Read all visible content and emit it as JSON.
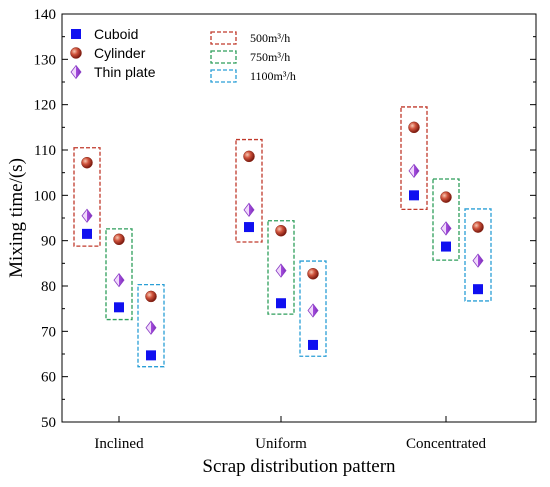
{
  "chart_data": {
    "type": "scatter",
    "xlabel": "Scrap distribution pattern",
    "ylabel": "Mixing time/(s)",
    "categories": [
      "Inclined",
      "Uniform",
      "Concentrated"
    ],
    "ylim": [
      50,
      140
    ],
    "yticks": [
      50,
      60,
      70,
      80,
      90,
      100,
      110,
      120,
      130,
      140
    ],
    "grid": false,
    "legend_position": "top-left",
    "shapes": [
      {
        "name": "Cuboid",
        "marker": "square",
        "color": "#1010f0"
      },
      {
        "name": "Cylinder",
        "marker": "sphere",
        "color": "#c0392b"
      },
      {
        "name": "Thin plate",
        "marker": "diamond",
        "color": "#a64de0"
      }
    ],
    "flow_rates": [
      {
        "name": "500m³/h",
        "color": "#c0392b"
      },
      {
        "name": "750m³/h",
        "color": "#2e9e5b"
      },
      {
        "name": "1100m³/h",
        "color": "#2a9fd6"
      }
    ],
    "groups": [
      {
        "category": "Inclined",
        "flow_rate": "500m³/h",
        "cuboid": 91.5,
        "cylinder": 107.2,
        "thin_plate": 95.5,
        "box": [
          88.8,
          110.5
        ]
      },
      {
        "category": "Inclined",
        "flow_rate": "750m³/h",
        "cuboid": 75.3,
        "cylinder": 90.3,
        "thin_plate": 81.3,
        "box": [
          72.6,
          92.6
        ]
      },
      {
        "category": "Inclined",
        "flow_rate": "1100m³/h",
        "cuboid": 64.7,
        "cylinder": 77.7,
        "thin_plate": 70.8,
        "box": [
          62.2,
          80.3
        ]
      },
      {
        "category": "Uniform",
        "flow_rate": "500m³/h",
        "cuboid": 93.0,
        "cylinder": 108.6,
        "thin_plate": 96.8,
        "box": [
          89.7,
          112.3
        ]
      },
      {
        "category": "Uniform",
        "flow_rate": "750m³/h",
        "cuboid": 76.2,
        "cylinder": 92.2,
        "thin_plate": 83.4,
        "box": [
          73.8,
          94.4
        ]
      },
      {
        "category": "Uniform",
        "flow_rate": "1100m³/h",
        "cuboid": 67.0,
        "cylinder": 82.7,
        "thin_plate": 74.6,
        "box": [
          64.5,
          85.5
        ]
      },
      {
        "category": "Concentrated",
        "flow_rate": "500m³/h",
        "cuboid": 100.0,
        "cylinder": 115.0,
        "thin_plate": 105.4,
        "box": [
          96.9,
          119.5
        ]
      },
      {
        "category": "Concentrated",
        "flow_rate": "750m³/h",
        "cuboid": 88.7,
        "cylinder": 99.6,
        "thin_plate": 92.7,
        "box": [
          85.7,
          103.6
        ]
      },
      {
        "category": "Concentrated",
        "flow_rate": "1100m³/h",
        "cuboid": 79.3,
        "cylinder": 93.0,
        "thin_plate": 85.6,
        "box": [
          76.7,
          97.0
        ]
      }
    ]
  }
}
